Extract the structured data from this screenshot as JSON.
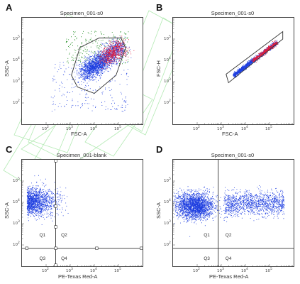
{
  "chart_data": [
    {
      "panel": "A",
      "type": "scatter",
      "title": "Specimen_001-s0",
      "xlabel": "FSC-A",
      "ylabel": "SSC-A",
      "x_scale": "log",
      "y_scale": "log",
      "xlim": [
        10,
        1000000
      ],
      "ylim": [
        10,
        1000000
      ],
      "x_ticks": [
        "10^2",
        "10^3",
        "10^4",
        "10^5"
      ],
      "y_ticks": [
        "10^2",
        "10^3",
        "10^4",
        "10^5"
      ],
      "gates": [
        "polygon gate around main population"
      ],
      "colors": {
        "main": "#1f3fe0",
        "high_density": "#e01a3a",
        "debris": "#1a8a1a"
      }
    },
    {
      "panel": "B",
      "type": "scatter",
      "title": "Specimen_001-s0",
      "xlabel": "FSC-A",
      "ylabel": "FSC-H",
      "x_scale": "log",
      "y_scale": "log",
      "xlim": [
        10,
        1000000
      ],
      "ylim": [
        10,
        1000000
      ],
      "x_ticks": [
        "10^2",
        "10^3",
        "10^4",
        "10^5"
      ],
      "y_ticks": [
        "10^2",
        "10^3",
        "10^4",
        "10^5"
      ],
      "gates": [
        "singlet diagonal gate"
      ],
      "colors": {
        "main": "#1f3fe0",
        "high_density": "#e01a3a"
      }
    },
    {
      "panel": "C",
      "type": "scatter",
      "title": "Specimen_001-blank",
      "xlabel": "PE-Texas Red-A",
      "ylabel": "SSC-A",
      "x_scale": "log",
      "y_scale": "log",
      "xlim": [
        10,
        1000000
      ],
      "ylim": [
        10,
        1000000
      ],
      "x_ticks": [
        "10^2",
        "10^3",
        "10^4",
        "10^5"
      ],
      "y_ticks": [
        "10^2",
        "10^3",
        "10^4",
        "10^5"
      ],
      "quadrant_threshold": {
        "x": 250,
        "y": 70
      },
      "quadrants": [
        "Q1",
        "Q2",
        "Q3",
        "Q4"
      ],
      "colors": {
        "main": "#1f3fe0"
      }
    },
    {
      "panel": "D",
      "type": "scatter",
      "title": "Specimen_001-s0",
      "xlabel": "PE-Texas Red-A",
      "ylabel": "SSC-A",
      "x_scale": "log",
      "y_scale": "log",
      "xlim": [
        10,
        1000000
      ],
      "ylim": [
        10,
        1000000
      ],
      "x_ticks": [
        "10^2",
        "10^3",
        "10^4",
        "10^5"
      ],
      "y_ticks": [
        "10^2",
        "10^3",
        "10^4",
        "10^5"
      ],
      "quadrant_threshold": {
        "x": 750,
        "y": 70
      },
      "quadrants": [
        "Q1",
        "Q2",
        "Q3",
        "Q4"
      ],
      "colors": {
        "main": "#1f3fe0"
      }
    }
  ],
  "panels": {
    "A": {
      "letter": "A",
      "title": "Specimen_001-s0",
      "xlabel": "FSC-A",
      "ylabel": "SSC-A"
    },
    "B": {
      "letter": "B",
      "title": "Specimen_001-s0",
      "xlabel": "FSC-A",
      "ylabel": "FSC-H"
    },
    "C": {
      "letter": "C",
      "title": "Specimen_001-blank",
      "xlabel": "PE-Texas Red-A",
      "ylabel": "SSC-A",
      "q1": "Q1",
      "q2": "Q2",
      "q3": "Q3",
      "q4": "Q4"
    },
    "D": {
      "letter": "D",
      "title": "Specimen_001-s0",
      "xlabel": "PE-Texas Red-A",
      "ylabel": "SSC-A",
      "q1": "Q1",
      "q2": "Q2",
      "q3": "Q3",
      "q4": "Q4"
    }
  },
  "tick_base": "10",
  "tick_exps": [
    "2",
    "3",
    "4",
    "5"
  ]
}
